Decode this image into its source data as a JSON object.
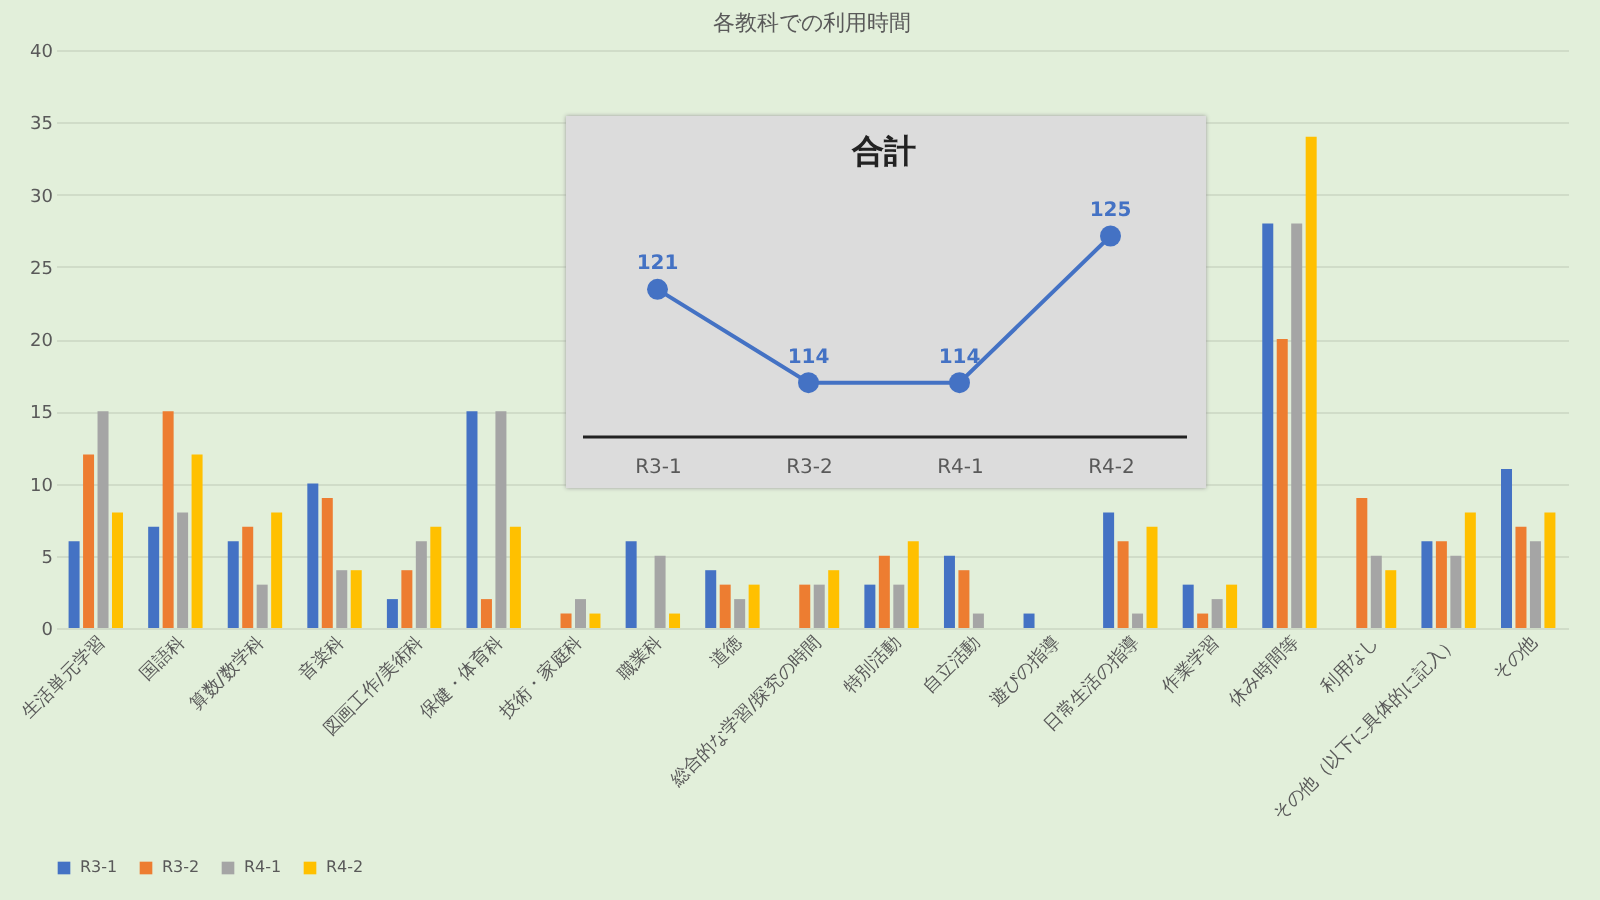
{
  "chart_data": [
    {
      "type": "bar",
      "title": "各教科での利用時間",
      "categories": [
        "生活単元学習",
        "国語科",
        "算数/数学科",
        "音楽科",
        "図画工作/美術科",
        "保健・体育科",
        "技術・家庭科",
        "職業科",
        "道徳",
        "総合的な学習/探究の時間",
        "特別活動",
        "自立活動",
        "遊びの指導",
        "日常生活の指導",
        "作業学習",
        "休み時間等",
        "利用なし",
        "その他（以下に具体的に記入）",
        "その他"
      ],
      "series": [
        {
          "name": "R3-1",
          "color": "#4472c4",
          "values": [
            6,
            7,
            6,
            10,
            2,
            15,
            null,
            6,
            4,
            null,
            3,
            5,
            1,
            8,
            3,
            28,
            null,
            6,
            11
          ]
        },
        {
          "name": "R3-2",
          "color": "#ed7d31",
          "values": [
            12,
            15,
            7,
            9,
            4,
            2,
            1,
            null,
            3,
            3,
            5,
            4,
            null,
            6,
            1,
            20,
            9,
            6,
            7
          ]
        },
        {
          "name": "R4-1",
          "color": "#a5a5a5",
          "values": [
            15,
            8,
            3,
            4,
            6,
            15,
            2,
            5,
            2,
            3,
            3,
            1,
            null,
            1,
            2,
            28,
            5,
            5,
            6
          ]
        },
        {
          "name": "R4-2",
          "color": "#ffc000",
          "values": [
            8,
            12,
            8,
            4,
            7,
            7,
            1,
            1,
            3,
            4,
            6,
            null,
            null,
            7,
            3,
            34,
            4,
            8,
            8
          ]
        }
      ],
      "ylim": [
        0,
        40
      ],
      "yticks": [
        0,
        5,
        10,
        15,
        20,
        25,
        30,
        35,
        40
      ],
      "grid": "y",
      "legend": "bottom"
    },
    {
      "type": "line",
      "title": "合計",
      "categories": [
        "R3-1",
        "R3-2",
        "R4-1",
        "R4-2"
      ],
      "series": [
        {
          "color": "#4472c4",
          "values": [
            121,
            114,
            114,
            125
          ]
        }
      ],
      "tick_labels": "x",
      "marker": "circle",
      "data_labels": true
    }
  ]
}
